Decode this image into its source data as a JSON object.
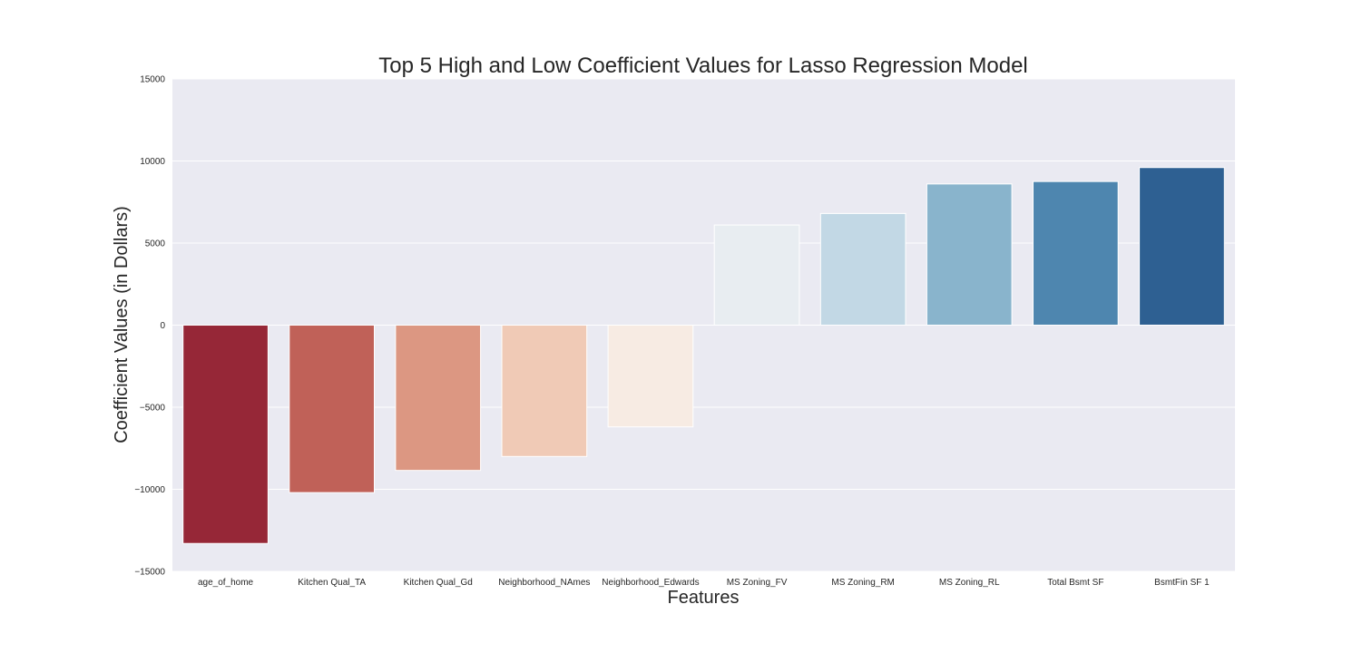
{
  "chart_data": {
    "type": "bar",
    "title": "Top 5 High and Low Coefficient Values for Lasso Regression Model",
    "xlabel": "Features",
    "ylabel": "Coefficient Values (in Dollars)",
    "categories": [
      "age_of_home",
      "Kitchen Qual_TA",
      "Kitchen Qual_Gd",
      "Neighborhood_NAmes",
      "Neighborhood_Edwards",
      "MS Zoning_FV",
      "MS Zoning_RM",
      "MS Zoning_RL",
      "Total Bsmt SF",
      "BsmtFin SF 1"
    ],
    "values": [
      -13300,
      -10200,
      -8850,
      -8000,
      -6200,
      6100,
      6800,
      8600,
      8750,
      9600
    ],
    "colors": [
      "#962737",
      "#c06158",
      "#dc9782",
      "#f0cab6",
      "#f7ebe3",
      "#e8edf1",
      "#c2d8e5",
      "#89b4cc",
      "#4e86af",
      "#2e6092"
    ],
    "ylim": [
      -15000,
      15000
    ],
    "yticks": [
      -15000,
      -10000,
      -5000,
      0,
      5000,
      10000,
      15000
    ],
    "ytick_labels": [
      "−15000",
      "−10000",
      "−5000",
      "0",
      "5000",
      "10000",
      "15000"
    ],
    "grid": true,
    "background": "#eaeaf2"
  }
}
